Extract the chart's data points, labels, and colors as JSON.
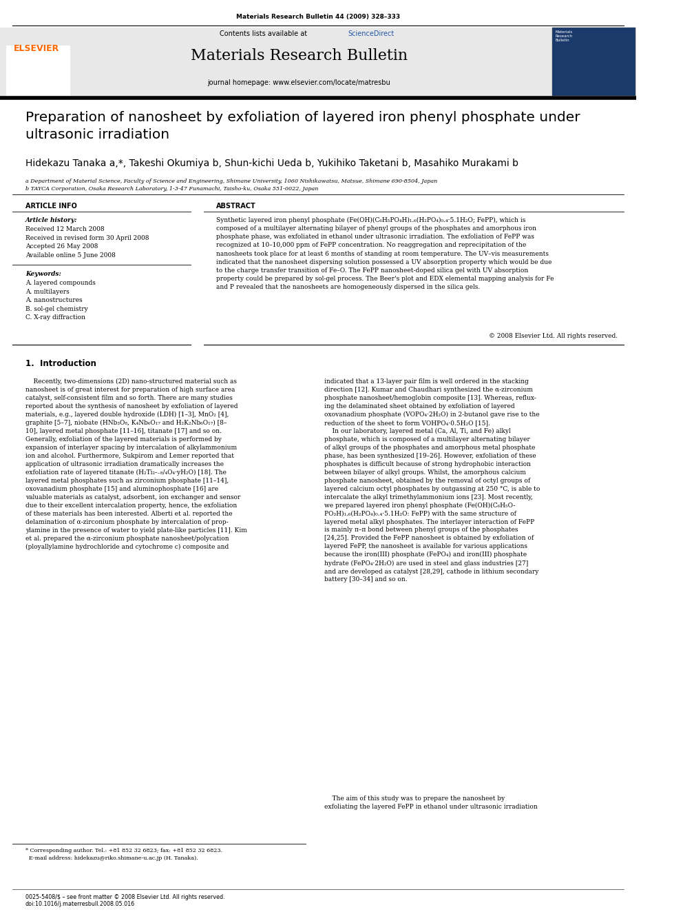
{
  "background_color": "#ffffff",
  "page_width": 9.92,
  "page_height": 13.23,
  "journal_ref": "Materials Research Bulletin 44 (2009) 328–333",
  "header_bg": "#e8e8e8",
  "header_contents_line": "Contents lists available at ScienceDirect",
  "header_journal_name": "Materials Research Bulletin",
  "header_homepage": "journal homepage: www.elsevier.com/locate/matresbu",
  "elsevier_color": "#ff6600",
  "sciencedirect_color": "#2255aa",
  "article_title": "Preparation of nanosheet by exfoliation of layered iron phenyl phosphate under\nultrasonic irradiation",
  "authors": "Hidekazu Tanaka a,*, Takeshi Okumiya b, Shun-kichi Ueda b, Yukihiko Taketani b, Masahiko Murakami b",
  "affil_a": "a Department of Material Science, Faculty of Science and Engineering, Shimane University, 1060 Nishikawatsu, Matsue, Shimane 690-8504, Japan",
  "affil_b": "b TAYCA Corporation, Osaka Research Laboratory, 1-3-47 Funamachi, Taisho-ku, Osaka 551-0022, Japan",
  "article_info_title": "ARTICLE INFO",
  "article_history_title": "Article history:",
  "article_history": "Received 12 March 2008\nReceived in revised form 30 April 2008\nAccepted 26 May 2008\nAvailable online 5 June 2008",
  "keywords_title": "Keywords:",
  "keywords": "A. layered compounds\nA. multilayers\nA. nanostructures\nB. sol-gel chemistry\nC. X-ray diffraction",
  "abstract_title": "ABSTRACT",
  "abstract_text": "Synthetic layered iron phenyl phosphate (Fe(OH)(C₆H₅PO₄H)₁.₆(H₂PO₄)₀.₄·5.1H₂O; FePP), which is\ncomposed of a multilayer alternating bilayer of phenyl groups of the phosphates and amorphous iron\nphosphate phase, was exfoliated in ethanol under ultrasonic irradiation. The exfoliation of FePP was\nrecognized at 10–10,000 ppm of FePP concentration. No reaggregation and reprecipitation of the\nnanosheets took place for at least 6 months of standing at room temperature. The UV–vis measurements\nindicated that the nanosheet dispersing solution possessed a UV absorption property which would be due\nto the charge transfer transition of Fe–O. The FePP nanosheet-doped silica gel with UV absorption\nproperty could be prepared by sol-gel process. The Beer's plot and EDX elemental mapping analysis for Fe\nand P revealed that the nanosheets are homogeneously dispersed in the silica gels.",
  "copyright_line": "© 2008 Elsevier Ltd. All rights reserved.",
  "section1_title": "1.  Introduction",
  "intro_col1": "    Recently, two-dimensions (2D) nano-structured material such as\nnanosheet is of great interest for preparation of high surface area\ncatalyst, self-consistent film and so forth. There are many studies\nreported about the synthesis of nanosheet by exfoliation of layered\nmaterials, e.g., layered double hydroxide (LDH) [1–3], MnO₂ [4],\ngraphite [5–7], niobate (HNb₃O₈, K₄Nb₆O₁₇ and H₂K₂Nb₆O₁₇) [8–\n10], layered metal phosphate [11–16], titanate [17] and so on.\nGenerally, exfoliation of the layered materials is performed by\nexpansion of interlayer spacing by intercalation of alkylammonium\nion and alcohol. Furthermore, Sukpirom and Lemer reported that\napplication of ultrasonic irradiation dramatically increases the\nexfoliation rate of layered titanate (H₂Ti₂-₋₈/₄O₄·yH₂O) [18]. The\nlayered metal phosphates such as zirconium phosphate [11–14],\noxovanadium phosphate [15] and aluminophosphate [16] are\nvaluable materials as catalyst, adsorbent, ion exchanger and sensor\ndue to their excellent intercalation property, hence, the exfoliation\nof these materials has been interested. Alberti et al. reported the\ndelamination of α-zirconium phosphate by intercalation of prop-\nylamine in the presence of water to yield plate-like particles [11]. Kim\net al. prepared the α-zirconium phosphate nanosheet/polycation\n(ployallylamine hydrochloride and cytochrome c) composite and",
  "intro_col2": "indicated that a 13-layer pair film is well ordered in the stacking\ndirection [12]. Kumar and Chaudhari synthesized the α-zirconium\nphosphate nanosheet/hemoglobin composite [13]. Whereas, reflux-\ning the delaminated sheet obtained by exfoliation of layered\noxovanadium phosphate (VOPO₄·2H₂O) in 2-butanol gave rise to the\nreduction of the sheet to form VOHPO₄·0.5H₂O [15].\n    In our laboratory, layered metal (Ca, Al, Ti, and Fe) alkyl\nphosphate, which is composed of a multilayer alternating bilayer\nof alkyl groups of the phosphates and amorphous metal phosphate\nphase, has been synthesized [19–26]. However, exfoliation of these\nphosphates is difficult because of strong hydrophobic interaction\nbetween bilayer of alkyl groups. Whilst, the amorphous calcium\nphosphate nanosheet, obtained by the removal of octyl groups of\nlayered calcium octyl phosphates by outgassing at 250 °C, is able to\nintercalate the alkyl trimethylammonium ions [23]. Most recently,\nwe prepared layered iron phenyl phosphate (Fe(OH)(C₆H₅O-\nPO₃H)₁.₆(H₂PO₄)₀.₄·5.1H₂O: FePP) with the same structure of\nlayered metal alkyl phosphates. The interlayer interaction of FePP\nis mainly π–π bond between phenyl groups of the phosphates\n[24,25]. Provided the FePP nanosheet is obtained by exfoliation of\nlayered FePP, the nanosheet is available for various applications\nbecause the iron(III) phosphate (FePO₄) and iron(III) phosphate\nhydrate (FePO₄·2H₂O) are used in steel and glass industries [27]\nand are developed as catalyst [28,29], cathode in lithium secondary\nbattery [30–34] and so on.",
  "aim_text": "    The aim of this study was to prepare the nanosheet by\nexfoliating the layered FePP in ethanol under ultrasonic irradiation",
  "footnote_line1": "* Corresponding author. Tel.: +81 852 32 6823; fax: +81 852 32 6823.",
  "footnote_line2": "  E-mail address: hidekazu@riko.shimane-u.ac.jp (H. Tanaka).",
  "footer_left": "0025-5408/$ – see front matter © 2008 Elsevier Ltd. All rights reserved.",
  "footer_doi": "doi:10.1016/j.materresbull.2008.05.016"
}
